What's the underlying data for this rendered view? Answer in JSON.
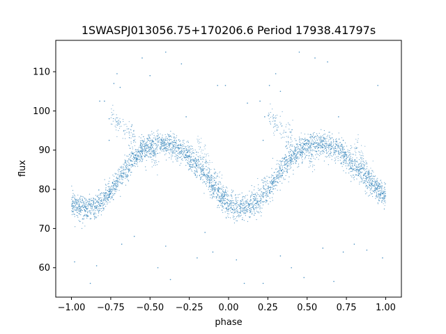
{
  "chart_data": {
    "type": "scatter",
    "title": "1SWASPJ013056.75+170206.6 Period 17938.41797s",
    "xlabel": "phase",
    "ylabel": "flux",
    "xlim": [
      -1.1,
      1.1
    ],
    "ylim": [
      52.5,
      118
    ],
    "x_ticks": [
      -1.0,
      -0.75,
      -0.5,
      -0.25,
      0.0,
      0.25,
      0.5,
      0.75,
      1.0
    ],
    "x_tick_labels": [
      "−1.00",
      "−0.75",
      "−0.50",
      "−0.25",
      "0.00",
      "0.25",
      "0.50",
      "0.75",
      "1.00"
    ],
    "y_ticks": [
      60,
      70,
      80,
      90,
      100,
      110
    ],
    "y_tick_labels": [
      "60",
      "70",
      "80",
      "90",
      "100",
      "110"
    ],
    "grid": false,
    "point_color": "#1f77b4",
    "series": [
      {
        "curve_points": [
          [
            -1.0,
            76.5
          ],
          [
            -0.95,
            75.5
          ],
          [
            -0.9,
            75.0
          ],
          [
            -0.85,
            75.5
          ],
          [
            -0.8,
            77.0
          ],
          [
            -0.75,
            79.5
          ],
          [
            -0.7,
            82.5
          ],
          [
            -0.65,
            85.5
          ],
          [
            -0.6,
            88.0
          ],
          [
            -0.55,
            89.8
          ],
          [
            -0.5,
            90.8
          ],
          [
            -0.45,
            91.3
          ],
          [
            -0.4,
            91.3
          ],
          [
            -0.35,
            90.8
          ],
          [
            -0.3,
            89.8
          ],
          [
            -0.25,
            88.2
          ],
          [
            -0.2,
            86.0
          ],
          [
            -0.15,
            83.5
          ],
          [
            -0.1,
            80.8
          ],
          [
            -0.05,
            78.0
          ],
          [
            0.0,
            76.2
          ],
          [
            0.05,
            75.3
          ],
          [
            0.1,
            75.2
          ],
          [
            0.15,
            76.0
          ],
          [
            0.2,
            77.5
          ],
          [
            0.25,
            80.0
          ],
          [
            0.3,
            83.0
          ],
          [
            0.35,
            85.8
          ],
          [
            0.4,
            88.0
          ],
          [
            0.45,
            89.8
          ],
          [
            0.5,
            91.0
          ],
          [
            0.55,
            91.5
          ],
          [
            0.6,
            91.5
          ],
          [
            0.65,
            91.0
          ],
          [
            0.7,
            90.0
          ],
          [
            0.75,
            88.3
          ],
          [
            0.8,
            86.0
          ],
          [
            0.85,
            84.0
          ],
          [
            0.9,
            82.0
          ],
          [
            0.95,
            80.0
          ],
          [
            1.0,
            78.0
          ]
        ],
        "outliers": [
          [
            -0.98,
            61.5
          ],
          [
            -0.88,
            56.0
          ],
          [
            -0.82,
            102.5
          ],
          [
            -0.79,
            102.5
          ],
          [
            -0.71,
            109.5
          ],
          [
            -0.73,
            107.0
          ],
          [
            -0.69,
            106.0
          ],
          [
            -0.76,
            98.0
          ],
          [
            -0.76,
            92.5
          ],
          [
            -0.55,
            113.5
          ],
          [
            -0.5,
            109.0
          ],
          [
            -0.4,
            115.0
          ],
          [
            -0.3,
            112.0
          ],
          [
            -0.27,
            98.5
          ],
          [
            -0.07,
            106.5
          ],
          [
            -0.02,
            106.5
          ],
          [
            0.12,
            102.0
          ],
          [
            0.2,
            102.5
          ],
          [
            0.23,
            98.5
          ],
          [
            0.22,
            92.5
          ],
          [
            0.3,
            109.5
          ],
          [
            0.26,
            106.5
          ],
          [
            0.33,
            105.0
          ],
          [
            0.45,
            115.0
          ],
          [
            0.55,
            113.5
          ],
          [
            0.63,
            112.5
          ],
          [
            0.7,
            98.5
          ],
          [
            0.73,
            92.5
          ],
          [
            0.95,
            106.5
          ],
          [
            0.98,
            62.5
          ],
          [
            -0.84,
            60.5
          ],
          [
            -0.68,
            66.0
          ],
          [
            -0.4,
            65.5
          ],
          [
            -0.37,
            57.0
          ],
          [
            -0.1,
            64.0
          ],
          [
            0.05,
            62.0
          ],
          [
            0.1,
            56.0
          ],
          [
            0.22,
            56.0
          ],
          [
            0.33,
            63.0
          ],
          [
            0.48,
            57.5
          ],
          [
            0.6,
            65.0
          ],
          [
            0.67,
            56.5
          ],
          [
            0.8,
            66.0
          ],
          [
            0.88,
            64.5
          ],
          [
            -0.2,
            62.5
          ],
          [
            -0.45,
            60.0
          ],
          [
            0.4,
            60.0
          ],
          [
            -0.6,
            68.0
          ],
          [
            0.73,
            64.0
          ],
          [
            -0.15,
            69.0
          ]
        ]
      }
    ]
  }
}
